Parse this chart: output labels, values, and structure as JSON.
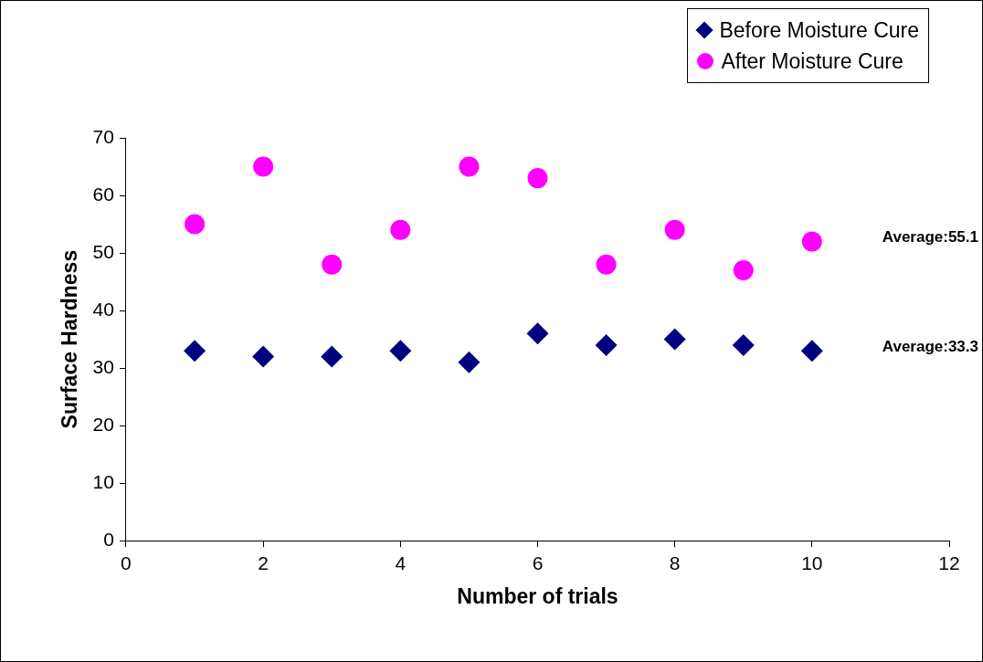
{
  "chart_data": {
    "type": "scatter",
    "xlabel": "Number of trials",
    "ylabel": "Surface Hardness",
    "x": [
      1,
      2,
      3,
      4,
      5,
      6,
      7,
      8,
      9,
      10
    ],
    "series": [
      {
        "name": "Before Moisture Cure",
        "color": "#000080",
        "marker": "diamond",
        "values": [
          33,
          32,
          32,
          33,
          31,
          36,
          34,
          35,
          34,
          33
        ]
      },
      {
        "name": "After Moisture Cure",
        "color": "#ff00ff",
        "marker": "circle",
        "values": [
          55,
          65,
          48,
          54,
          65,
          63,
          48,
          54,
          47,
          52
        ]
      }
    ],
    "xlim": [
      0,
      12
    ],
    "xticks": [
      0,
      2,
      4,
      6,
      8,
      10,
      12
    ],
    "ylim": [
      0,
      70
    ],
    "yticks": [
      0,
      10,
      20,
      30,
      40,
      50,
      60,
      70
    ],
    "grid": false,
    "legend": "top right",
    "annotations": [
      "Average:55.1",
      "Average:33.3"
    ]
  }
}
